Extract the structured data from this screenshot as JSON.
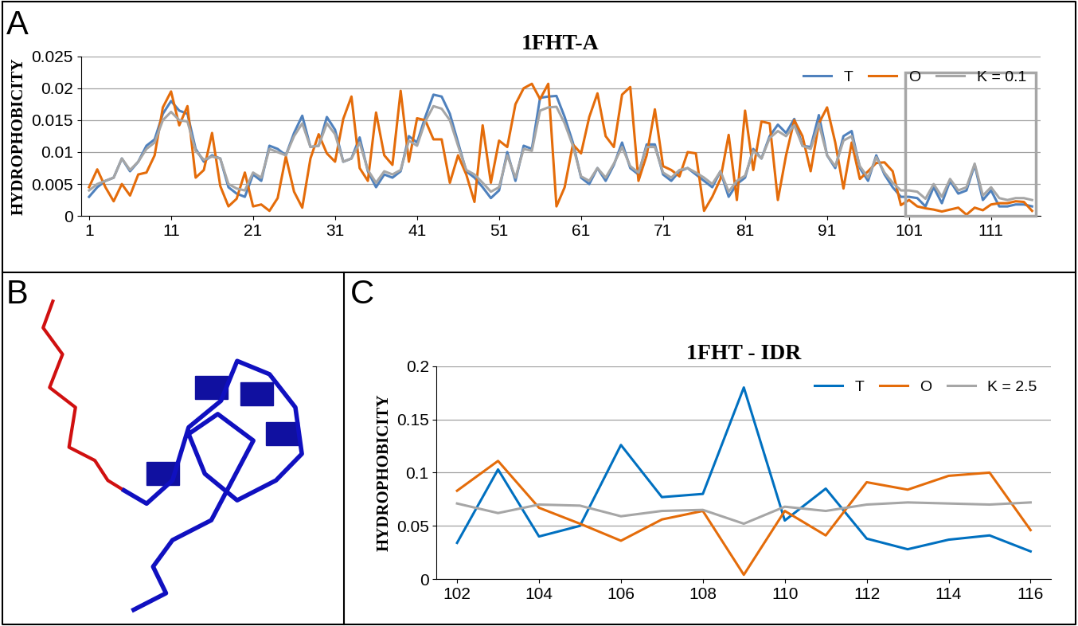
{
  "panel_labels": [
    "A",
    "B",
    "C"
  ],
  "chart_data": [
    {
      "type": "line",
      "title": "1FHT-A",
      "y_label": "HYDROPHOBICITY",
      "x": [
        1,
        2,
        3,
        4,
        5,
        6,
        7,
        8,
        9,
        10,
        11,
        12,
        13,
        14,
        15,
        16,
        17,
        18,
        19,
        20,
        21,
        22,
        23,
        24,
        25,
        26,
        27,
        28,
        29,
        30,
        31,
        32,
        33,
        34,
        35,
        36,
        37,
        38,
        39,
        40,
        41,
        42,
        43,
        44,
        45,
        46,
        47,
        48,
        49,
        50,
        51,
        52,
        53,
        54,
        55,
        56,
        57,
        58,
        59,
        60,
        61,
        62,
        63,
        64,
        65,
        66,
        67,
        68,
        69,
        70,
        71,
        72,
        73,
        74,
        75,
        76,
        77,
        78,
        79,
        80,
        81,
        82,
        83,
        84,
        85,
        86,
        87,
        88,
        89,
        90,
        91,
        92,
        93,
        94,
        95,
        96,
        97,
        98,
        99,
        100,
        101,
        102,
        103,
        104,
        105,
        106,
        107,
        108,
        109,
        110,
        111,
        112,
        113,
        114,
        115,
        116
      ],
      "xlim": [
        0,
        117
      ],
      "xticks": [
        1,
        11,
        21,
        31,
        41,
        51,
        61,
        71,
        81,
        91,
        101,
        111
      ],
      "ylim": [
        0,
        0.025
      ],
      "yticks": [
        0,
        0.005,
        0.01,
        0.015,
        0.02,
        0.025
      ],
      "grid": true,
      "legend": "upper right",
      "series": [
        {
          "name": "T",
          "color": "#4f81bd",
          "values": [
            0.003,
            0.0045,
            0.0055,
            0.006,
            0.009,
            0.007,
            0.0085,
            0.011,
            0.012,
            0.016,
            0.018,
            0.0165,
            0.016,
            0.0105,
            0.0085,
            0.0095,
            0.009,
            0.0045,
            0.0035,
            0.003,
            0.0065,
            0.0055,
            0.011,
            0.0105,
            0.0095,
            0.013,
            0.0157,
            0.0108,
            0.011,
            0.0155,
            0.0135,
            0.0085,
            0.009,
            0.0123,
            0.007,
            0.0045,
            0.0065,
            0.006,
            0.007,
            0.0125,
            0.0115,
            0.0155,
            0.019,
            0.0187,
            0.016,
            0.0115,
            0.007,
            0.006,
            0.0045,
            0.0028,
            0.004,
            0.01,
            0.0055,
            0.011,
            0.0105,
            0.0185,
            0.0187,
            0.0188,
            0.0155,
            0.0115,
            0.006,
            0.005,
            0.0075,
            0.0055,
            0.008,
            0.0115,
            0.0075,
            0.0065,
            0.0112,
            0.0112,
            0.0065,
            0.0055,
            0.007,
            0.0075,
            0.0065,
            0.0055,
            0.0045,
            0.007,
            0.003,
            0.005,
            0.006,
            0.0105,
            0.009,
            0.0125,
            0.0143,
            0.013,
            0.0152,
            0.011,
            0.0108,
            0.0158,
            0.0095,
            0.0075,
            0.0125,
            0.0133,
            0.0075,
            0.0055,
            0.0095,
            0.0065,
            0.0045,
            0.003,
            0.003,
            0.0028,
            0.0015,
            0.0045,
            0.002,
            0.0055,
            0.0035,
            0.004,
            0.008,
            0.0025,
            0.004,
            0.0015,
            0.0015,
            0.0018,
            0.0018,
            0.0015
          ]
        },
        {
          "name": "O",
          "color": "#e46c0a",
          "values": [
            0.0045,
            0.0073,
            0.0045,
            0.0023,
            0.005,
            0.0032,
            0.0065,
            0.0068,
            0.0095,
            0.017,
            0.0195,
            0.0142,
            0.0172,
            0.006,
            0.0072,
            0.013,
            0.0047,
            0.0015,
            0.0027,
            0.0068,
            0.0015,
            0.0018,
            0.0008,
            0.0028,
            0.0093,
            0.0038,
            0.0013,
            0.009,
            0.0128,
            0.0098,
            0.0085,
            0.0152,
            0.0187,
            0.0075,
            0.0055,
            0.0162,
            0.0095,
            0.008,
            0.0196,
            0.0085,
            0.0153,
            0.015,
            0.012,
            0.012,
            0.0052,
            0.0095,
            0.0065,
            0.0022,
            0.0142,
            0.0052,
            0.0118,
            0.0108,
            0.0175,
            0.02,
            0.0207,
            0.0183,
            0.0207,
            0.0015,
            0.0045,
            0.0112,
            0.0098,
            0.0155,
            0.0192,
            0.0125,
            0.0108,
            0.019,
            0.0202,
            0.0055,
            0.0095,
            0.0167,
            0.0078,
            0.0072,
            0.0062,
            0.01,
            0.0098,
            0.0008,
            0.003,
            0.0058,
            0.0127,
            0.0025,
            0.0165,
            0.0072,
            0.0148,
            0.0145,
            0.0025,
            0.0095,
            0.015,
            0.0125,
            0.007,
            0.0145,
            0.017,
            0.0115,
            0.0043,
            0.0115,
            0.0058,
            0.007,
            0.0083,
            0.0084,
            0.007,
            0.0017,
            0.0025,
            0.0015,
            0.0012,
            0.001,
            0.0007,
            0.001,
            0.0013,
            0.0002,
            0.0013,
            0.0009,
            0.0018,
            0.002,
            0.002,
            0.0023,
            0.0022,
            0.0008
          ]
        },
        {
          "name": "K = 0.1",
          "color": "#a6a6a6",
          "values": [
            0.004,
            0.005,
            0.0055,
            0.006,
            0.009,
            0.0072,
            0.0085,
            0.0105,
            0.0115,
            0.015,
            0.0163,
            0.015,
            0.0148,
            0.0102,
            0.0088,
            0.0093,
            0.009,
            0.005,
            0.0043,
            0.004,
            0.0068,
            0.006,
            0.0105,
            0.01,
            0.0095,
            0.0125,
            0.0145,
            0.0108,
            0.011,
            0.0145,
            0.0128,
            0.0085,
            0.009,
            0.0115,
            0.0072,
            0.0052,
            0.007,
            0.0065,
            0.0072,
            0.0118,
            0.011,
            0.0148,
            0.0172,
            0.0168,
            0.015,
            0.011,
            0.0072,
            0.0065,
            0.0052,
            0.0038,
            0.0045,
            0.0095,
            0.006,
            0.0105,
            0.0102,
            0.0165,
            0.017,
            0.0171,
            0.0145,
            0.011,
            0.0062,
            0.0055,
            0.0075,
            0.006,
            0.0082,
            0.0108,
            0.0078,
            0.0068,
            0.0108,
            0.0108,
            0.0068,
            0.006,
            0.0072,
            0.0075,
            0.0068,
            0.006,
            0.005,
            0.007,
            0.0038,
            0.0055,
            0.0063,
            0.0102,
            0.009,
            0.0122,
            0.0133,
            0.0125,
            0.0142,
            0.011,
            0.0105,
            0.0145,
            0.0095,
            0.0078,
            0.0118,
            0.0125,
            0.0078,
            0.006,
            0.0092,
            0.0068,
            0.0052,
            0.004,
            0.004,
            0.0038,
            0.0027,
            0.005,
            0.003,
            0.0058,
            0.004,
            0.0045,
            0.0082,
            0.0032,
            0.0045,
            0.0028,
            0.0025,
            0.0028,
            0.0028,
            0.0025
          ]
        }
      ]
    },
    {
      "type": "line",
      "title": "1FHT - IDR",
      "y_label": "HYDROPHOBICITY",
      "x": [
        102,
        103,
        104,
        105,
        106,
        107,
        108,
        109,
        110,
        111,
        112,
        113,
        114,
        115,
        116
      ],
      "xlim": [
        101.5,
        116.5
      ],
      "xticks": [
        102,
        104,
        106,
        108,
        110,
        112,
        114,
        116
      ],
      "ylim": [
        0,
        0.2
      ],
      "yticks": [
        0,
        0.05,
        0.1,
        0.15,
        0.2
      ],
      "grid": true,
      "legend": "upper right",
      "series": [
        {
          "name": "T",
          "color": "#0070c0",
          "values": [
            0.034,
            0.103,
            0.04,
            0.05,
            0.126,
            0.077,
            0.08,
            0.18,
            0.055,
            0.085,
            0.038,
            0.028,
            0.037,
            0.041,
            0.026
          ]
        },
        {
          "name": "O",
          "color": "#e46c0a",
          "values": [
            0.083,
            0.111,
            0.067,
            0.052,
            0.036,
            0.056,
            0.064,
            0.004,
            0.064,
            0.041,
            0.091,
            0.084,
            0.097,
            0.1,
            0.046
          ]
        },
        {
          "name": "K = 2.5",
          "color": "#a6a6a6",
          "values": [
            0.071,
            0.062,
            0.07,
            0.069,
            0.059,
            0.064,
            0.065,
            0.052,
            0.068,
            0.064,
            0.07,
            0.072,
            0.071,
            0.07,
            0.072
          ]
        }
      ]
    }
  ]
}
